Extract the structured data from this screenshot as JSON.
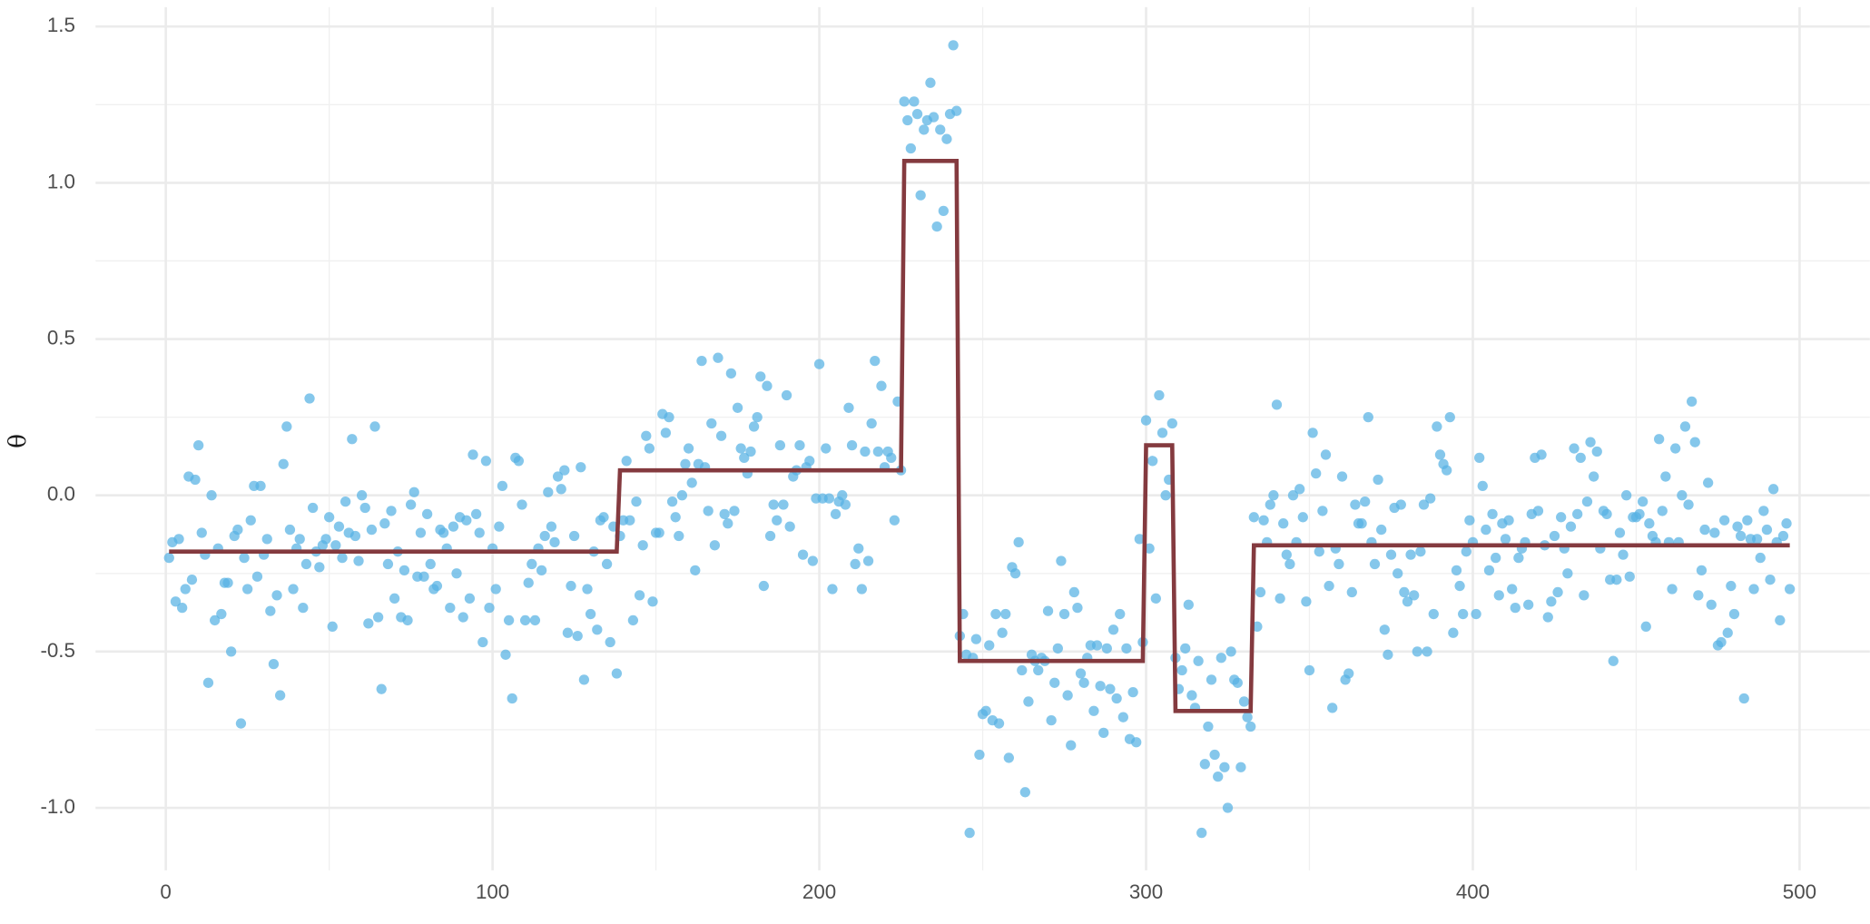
{
  "chart_data": {
    "type": "scatter",
    "y_label": "θ",
    "xlim": [
      -21.5,
      521.5
    ],
    "ylim": [
      -1.2,
      1.562
    ],
    "xticks": [
      0,
      100,
      200,
      300,
      400,
      500
    ],
    "yticks": [
      {
        "value": -1,
        "label": "-1.0"
      },
      -0.5,
      {
        "value": 0,
        "label": "0.0"
      },
      0.5,
      {
        "value": 1,
        "label": "1.0"
      },
      1.5
    ],
    "x_minor_ticks": [
      50,
      150,
      250,
      350,
      450
    ],
    "y_minor_ticks": [
      -0.75,
      -0.25,
      0.25,
      0.75,
      1.25
    ],
    "grid": true,
    "series": [
      {
        "type": "scatter",
        "color": "#56b1e3",
        "x": [
          1,
          2,
          3,
          4,
          5,
          6,
          7,
          8,
          9,
          10,
          11,
          12,
          13,
          14,
          15,
          16,
          17,
          18,
          19,
          20,
          21,
          22,
          23,
          24,
          25,
          26,
          27,
          28,
          29,
          30,
          31,
          32,
          33,
          34,
          35,
          36,
          37,
          38,
          39,
          40,
          41,
          42,
          43,
          44,
          45,
          46,
          47,
          48,
          49,
          50,
          51,
          52,
          53,
          54,
          55,
          56,
          57,
          58,
          59,
          60,
          61,
          62,
          63,
          64,
          65,
          66,
          67,
          68,
          69,
          70,
          71,
          72,
          73,
          74,
          75,
          76,
          77,
          78,
          79,
          80,
          81,
          82,
          83,
          84,
          85,
          86,
          87,
          88,
          89,
          90,
          91,
          92,
          93,
          94,
          95,
          96,
          97,
          98,
          99,
          100,
          101,
          102,
          103,
          104,
          105,
          106,
          107,
          108,
          109,
          110,
          111,
          112,
          113,
          114,
          115,
          116,
          117,
          118,
          119,
          120,
          121,
          122,
          123,
          124,
          125,
          126,
          127,
          128,
          129,
          130,
          131,
          132,
          133,
          134,
          135,
          136,
          137,
          138,
          139,
          140,
          141,
          142,
          143,
          144,
          145,
          146,
          147,
          148,
          149,
          150,
          151,
          152,
          153,
          154,
          155,
          156,
          157,
          158,
          159,
          160,
          161,
          162,
          163,
          164,
          165,
          166,
          167,
          168,
          169,
          170,
          171,
          172,
          173,
          174,
          175,
          176,
          177,
          178,
          179,
          180,
          181,
          182,
          183,
          184,
          185,
          186,
          187,
          188,
          189,
          190,
          191,
          192,
          193,
          194,
          195,
          196,
          197,
          198,
          199,
          200,
          201,
          202,
          203,
          204,
          205,
          206,
          207,
          208,
          209,
          210,
          211,
          212,
          213,
          214,
          215,
          216,
          217,
          218,
          219,
          220,
          221,
          222,
          223,
          224,
          225,
          226,
          227,
          228,
          229,
          230,
          231,
          232,
          233,
          234,
          235,
          236,
          237,
          238,
          239,
          240,
          241,
          242,
          243,
          244,
          245,
          246,
          247,
          248,
          249,
          250,
          251,
          252,
          253,
          254,
          255,
          256,
          257,
          258,
          259,
          260,
          261,
          262,
          263,
          264,
          265,
          266,
          267,
          268,
          269,
          270,
          271,
          272,
          273,
          274,
          275,
          276,
          277,
          278,
          279,
          280,
          281,
          282,
          283,
          284,
          285,
          286,
          287,
          288,
          289,
          290,
          291,
          292,
          293,
          294,
          295,
          296,
          297,
          298,
          299,
          300,
          301,
          302,
          303,
          304,
          305,
          306,
          307,
          308,
          309,
          310,
          311,
          312,
          313,
          314,
          315,
          316,
          317,
          318,
          319,
          320,
          321,
          322,
          323,
          324,
          325,
          326,
          327,
          328,
          329,
          330,
          331,
          332,
          333,
          334,
          335,
          336,
          337,
          338,
          339,
          340,
          341,
          342,
          343,
          344,
          345,
          346,
          347,
          348,
          349,
          350,
          351,
          352,
          353,
          354,
          355,
          356,
          357,
          358,
          359,
          360,
          361,
          362,
          363,
          364,
          365,
          366,
          367,
          368,
          369,
          370,
          371,
          372,
          373,
          374,
          375,
          376,
          377,
          378,
          379,
          380,
          381,
          382,
          383,
          384,
          385,
          386,
          387,
          388,
          389,
          390,
          391,
          392,
          393,
          394,
          395,
          396,
          397,
          398,
          399,
          400,
          401,
          402,
          403,
          404,
          405,
          406,
          407,
          408,
          409,
          410,
          411,
          412,
          413,
          414,
          415,
          416,
          417,
          418,
          419,
          420,
          421,
          422,
          423,
          424,
          425,
          426,
          427,
          428,
          429,
          430,
          431,
          432,
          433,
          434,
          435,
          436,
          437,
          438,
          439,
          440,
          441,
          442,
          443,
          444,
          445,
          446,
          447,
          448,
          449,
          450,
          451,
          452,
          453,
          454,
          455,
          456,
          457,
          458,
          459,
          460,
          461,
          462,
          463,
          464,
          465,
          466,
          467,
          468,
          469,
          470,
          471,
          472,
          473,
          474,
          475,
          476,
          477,
          478,
          479,
          480,
          481,
          482,
          483,
          484,
          485,
          486,
          487,
          488,
          489,
          490,
          491,
          492,
          493,
          494,
          495,
          496,
          497
        ],
        "values": [
          -0.2,
          -0.15,
          -0.34,
          -0.14,
          -0.36,
          -0.3,
          0.06,
          -0.27,
          0.05,
          0.16,
          -0.12,
          -0.19,
          -0.6,
          0.0,
          -0.4,
          -0.17,
          -0.38,
          -0.28,
          -0.28,
          -0.5,
          -0.13,
          -0.11,
          -0.73,
          -0.2,
          -0.3,
          -0.08,
          0.03,
          -0.26,
          0.03,
          -0.19,
          -0.14,
          -0.37,
          -0.54,
          -0.32,
          -0.64,
          0.1,
          0.22,
          -0.11,
          -0.3,
          -0.17,
          -0.14,
          -0.36,
          -0.22,
          0.31,
          -0.04,
          -0.18,
          -0.23,
          -0.16,
          -0.14,
          -0.07,
          -0.42,
          -0.16,
          -0.1,
          -0.2,
          -0.02,
          -0.12,
          0.18,
          -0.13,
          -0.21,
          0.0,
          -0.04,
          -0.41,
          -0.11,
          0.22,
          -0.39,
          -0.62,
          -0.09,
          -0.22,
          -0.05,
          -0.33,
          -0.18,
          -0.39,
          -0.24,
          -0.4,
          -0.03,
          0.01,
          -0.26,
          -0.12,
          -0.26,
          -0.06,
          -0.22,
          -0.3,
          -0.29,
          -0.11,
          -0.12,
          -0.17,
          -0.36,
          -0.1,
          -0.25,
          -0.07,
          -0.39,
          -0.08,
          -0.33,
          0.13,
          -0.06,
          -0.12,
          -0.47,
          0.11,
          -0.36,
          -0.17,
          -0.3,
          -0.1,
          0.03,
          -0.51,
          -0.4,
          -0.65,
          0.12,
          0.11,
          -0.03,
          -0.4,
          -0.28,
          -0.22,
          -0.4,
          -0.17,
          -0.24,
          -0.13,
          0.01,
          -0.1,
          -0.15,
          0.06,
          0.02,
          0.08,
          -0.44,
          -0.29,
          -0.13,
          -0.45,
          0.09,
          -0.59,
          -0.3,
          -0.38,
          -0.18,
          -0.43,
          -0.08,
          -0.07,
          -0.22,
          -0.47,
          -0.1,
          -0.57,
          -0.13,
          -0.08,
          0.11,
          -0.08,
          -0.4,
          -0.02,
          -0.32,
          -0.16,
          0.19,
          0.15,
          -0.34,
          -0.12,
          -0.12,
          0.26,
          0.2,
          0.25,
          -0.02,
          -0.07,
          -0.13,
          0.0,
          0.1,
          0.15,
          0.04,
          -0.24,
          0.1,
          0.43,
          0.09,
          -0.05,
          0.23,
          -0.16,
          0.44,
          0.19,
          -0.06,
          -0.09,
          0.39,
          -0.05,
          0.28,
          0.15,
          0.12,
          0.07,
          0.14,
          0.22,
          0.25,
          0.38,
          -0.29,
          0.35,
          -0.13,
          -0.03,
          -0.08,
          0.16,
          -0.03,
          0.32,
          -0.1,
          0.06,
          0.08,
          0.16,
          -0.19,
          0.09,
          0.11,
          -0.21,
          -0.01,
          0.42,
          -0.01,
          0.15,
          -0.01,
          -0.3,
          -0.06,
          -0.02,
          0.0,
          -0.03,
          0.28,
          0.16,
          -0.22,
          -0.17,
          -0.3,
          0.14,
          -0.21,
          0.23,
          0.43,
          0.14,
          0.35,
          0.09,
          0.14,
          0.12,
          -0.08,
          0.3,
          0.08,
          1.26,
          1.2,
          1.11,
          1.26,
          1.22,
          0.96,
          1.17,
          1.2,
          1.32,
          1.21,
          0.86,
          1.17,
          0.91,
          1.14,
          1.22,
          1.44,
          1.23,
          -0.45,
          -0.38,
          -0.51,
          -1.08,
          -0.52,
          -0.46,
          -0.83,
          -0.7,
          -0.69,
          -0.48,
          -0.72,
          -0.38,
          -0.73,
          -0.44,
          -0.38,
          -0.84,
          -0.23,
          -0.25,
          -0.15,
          -0.56,
          -0.95,
          -0.66,
          -0.51,
          -0.53,
          -0.56,
          -0.52,
          -0.53,
          -0.37,
          -0.72,
          -0.6,
          -0.49,
          -0.21,
          -0.38,
          -0.64,
          -0.8,
          -0.31,
          -0.36,
          -0.57,
          -0.6,
          -0.52,
          -0.48,
          -0.69,
          -0.48,
          -0.61,
          -0.76,
          -0.49,
          -0.62,
          -0.43,
          -0.65,
          -0.38,
          -0.71,
          -0.49,
          -0.78,
          -0.63,
          -0.79,
          -0.14,
          -0.47,
          0.24,
          -0.17,
          0.11,
          -0.33,
          0.32,
          0.2,
          0.0,
          0.05,
          0.23,
          -0.52,
          -0.62,
          -0.56,
          -0.49,
          -0.35,
          -0.64,
          -0.68,
          -0.53,
          -1.08,
          -0.86,
          -0.74,
          -0.59,
          -0.83,
          -0.9,
          -0.52,
          -0.87,
          -1.0,
          -0.5,
          -0.59,
          -0.6,
          -0.87,
          -0.66,
          -0.71,
          -0.74,
          -0.07,
          -0.42,
          -0.31,
          -0.08,
          -0.15,
          -0.03,
          0.0,
          0.29,
          -0.33,
          -0.09,
          -0.19,
          -0.22,
          0.0,
          -0.15,
          0.02,
          -0.07,
          -0.34,
          -0.56,
          0.2,
          0.07,
          -0.18,
          -0.05,
          0.13,
          -0.29,
          -0.68,
          -0.17,
          -0.22,
          0.06,
          -0.59,
          -0.57,
          -0.31,
          -0.03,
          -0.09,
          -0.09,
          -0.02,
          0.25,
          -0.15,
          -0.22,
          0.05,
          -0.11,
          -0.43,
          -0.51,
          -0.19,
          -0.04,
          -0.25,
          -0.03,
          -0.31,
          -0.34,
          -0.19,
          -0.32,
          -0.5,
          -0.18,
          -0.03,
          -0.5,
          -0.01,
          -0.38,
          0.22,
          0.13,
          0.1,
          0.08,
          0.25,
          -0.44,
          -0.24,
          -0.29,
          -0.38,
          -0.18,
          -0.08,
          -0.15,
          -0.38,
          0.12,
          0.03,
          -0.11,
          -0.24,
          -0.06,
          -0.2,
          -0.32,
          -0.09,
          -0.14,
          -0.08,
          -0.3,
          -0.36,
          -0.2,
          -0.17,
          -0.15,
          -0.35,
          -0.06,
          0.12,
          -0.05,
          0.13,
          -0.16,
          -0.39,
          -0.34,
          -0.13,
          -0.31,
          -0.07,
          -0.17,
          -0.25,
          -0.1,
          0.15,
          -0.06,
          0.12,
          -0.32,
          -0.02,
          0.17,
          0.06,
          0.14,
          -0.17,
          -0.05,
          -0.06,
          -0.27,
          -0.53,
          -0.27,
          -0.12,
          -0.19,
          0.0,
          -0.26,
          -0.07,
          -0.07,
          -0.06,
          -0.02,
          -0.42,
          -0.09,
          -0.13,
          -0.15,
          0.18,
          -0.05,
          0.06,
          -0.15,
          -0.3,
          0.15,
          -0.15,
          0.0,
          0.22,
          -0.03,
          0.3,
          0.17,
          -0.32,
          -0.24,
          -0.11,
          0.04,
          -0.35,
          -0.12,
          -0.48,
          -0.47,
          -0.08,
          -0.44,
          -0.29,
          -0.38,
          -0.1,
          -0.13,
          -0.65,
          -0.08,
          -0.14,
          -0.3,
          -0.14,
          -0.2,
          -0.05,
          -0.11,
          -0.27,
          0.02,
          -0.15,
          -0.4,
          -0.13,
          -0.09,
          -0.3
        ]
      },
      {
        "type": "line",
        "color": "#843a3f",
        "x": [
          1,
          138,
          139,
          225,
          226,
          242,
          243,
          299,
          300,
          308,
          309,
          332,
          333,
          497
        ],
        "values": [
          -0.18,
          -0.18,
          0.08,
          0.08,
          1.07,
          1.07,
          -0.53,
          -0.53,
          0.16,
          0.16,
          -0.69,
          -0.69,
          -0.16,
          -0.16
        ]
      }
    ]
  }
}
